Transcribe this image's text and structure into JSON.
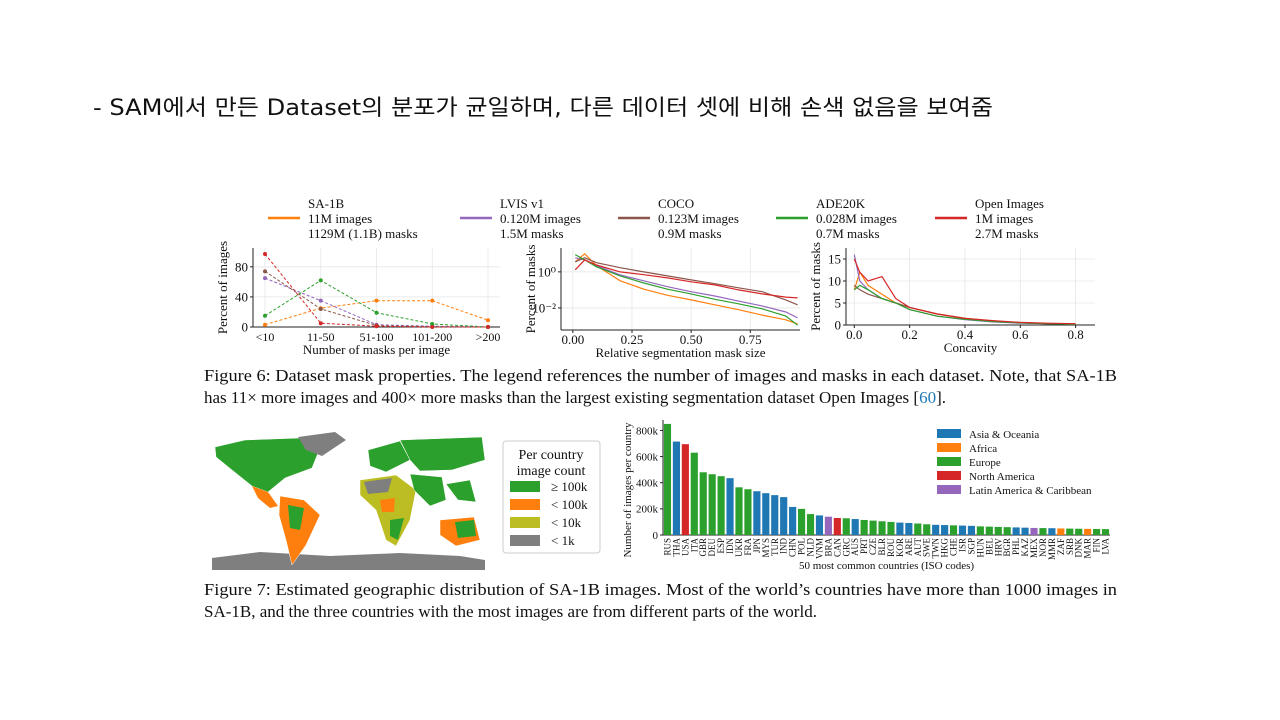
{
  "slide_title": "-  SAM에서 만든 Dataset의 분포가 균일하며, 다른 데이터 셋에 비해 손색 없음을 보여줌",
  "chart_data": [
    {
      "type": "line",
      "markers": true,
      "dashed": true,
      "grid": true,
      "categories": [
        "<10",
        "11-50",
        "51-100",
        "101-200",
        ">200"
      ],
      "xlabel": "Number of masks per image",
      "ylabel": "Percent of images",
      "ylim": [
        0,
        105
      ],
      "yticks": [
        0,
        40,
        80
      ],
      "series": [
        {
          "name": "SA-1B",
          "images": "11M images",
          "masks": "1129M (1.1B) masks",
          "color": "#ff7f0e",
          "values": [
            3,
            25,
            35,
            35,
            9
          ]
        },
        {
          "name": "LVIS v1",
          "images": "0.120M images",
          "masks": "1.5M masks",
          "color": "#9467bd",
          "values": [
            65,
            35,
            3,
            1,
            0
          ]
        },
        {
          "name": "COCO",
          "images": "0.123M images",
          "masks": "0.9M masks",
          "color": "#8c564b",
          "values": [
            74,
            24,
            2,
            0.5,
            0
          ]
        },
        {
          "name": "ADE20K",
          "images": "0.028M images",
          "masks": "0.7M masks",
          "color": "#2ca02c",
          "values": [
            15,
            62,
            19,
            4,
            0
          ]
        },
        {
          "name": "Open Images",
          "images": "1M images",
          "masks": "2.7M masks",
          "color": "#d62728",
          "values": [
            97,
            5,
            1,
            0,
            0
          ]
        }
      ]
    },
    {
      "type": "line",
      "grid": true,
      "log_y": true,
      "x": [
        0.01,
        0.05,
        0.1,
        0.2,
        0.3,
        0.4,
        0.5,
        0.6,
        0.7,
        0.8,
        0.9,
        0.95
      ],
      "xlabel": "Relative segmentation mask size",
      "ylabel": "Percent of masks",
      "xlim": [
        -0.05,
        0.96
      ],
      "xticks": [
        {
          "value": 0,
          "label": "0.00"
        },
        {
          "value": 0.25,
          "label": "0.25"
        },
        {
          "value": 0.5,
          "label": "0.50"
        },
        {
          "value": 0.75,
          "label": "0.75"
        }
      ],
      "ylim": [
        0.0006,
        21
      ],
      "yticks": [
        {
          "value": 1,
          "label": "10⁰"
        },
        {
          "value": 0.01,
          "label": "10⁻²"
        }
      ],
      "series": [
        {
          "color": "#ff7f0e",
          "values": [
            3.6,
            10,
            2.2,
            0.32,
            0.11,
            0.05,
            0.028,
            0.015,
            0.008,
            0.004,
            0.0022,
            0.0013
          ]
        },
        {
          "color": "#9467bd",
          "values": [
            6,
            4.6,
            2.2,
            0.68,
            0.32,
            0.15,
            0.08,
            0.046,
            0.024,
            0.013,
            0.006,
            0.0028
          ]
        },
        {
          "color": "#8c564b",
          "values": [
            3.6,
            6,
            3.2,
            1.7,
            1,
            0.6,
            0.36,
            0.22,
            0.13,
            0.08,
            0.028,
            0.015
          ]
        },
        {
          "color": "#2ca02c",
          "values": [
            9,
            4.6,
            1.9,
            0.6,
            0.24,
            0.11,
            0.06,
            0.03,
            0.017,
            0.009,
            0.0036,
            0.0011
          ]
        },
        {
          "color": "#d62728",
          "values": [
            1.3,
            4.6,
            2.4,
            1,
            0.7,
            0.46,
            0.28,
            0.19,
            0.1,
            0.06,
            0.04,
            0.036
          ]
        }
      ]
    },
    {
      "type": "line",
      "grid": true,
      "x": [
        0,
        0.02,
        0.05,
        0.1,
        0.15,
        0.2,
        0.3,
        0.4,
        0.5,
        0.6,
        0.7,
        0.8
      ],
      "xlabel": "Concavity",
      "ylabel": "Percent of masks",
      "xlim": [
        -0.03,
        0.87
      ],
      "xticks": [
        {
          "value": 0,
          "label": "0.0"
        },
        {
          "value": 0.2,
          "label": "0.2"
        },
        {
          "value": 0.4,
          "label": "0.4"
        },
        {
          "value": 0.6,
          "label": "0.6"
        },
        {
          "value": 0.8,
          "label": "0.8"
        }
      ],
      "ylim": [
        0,
        17.5
      ],
      "yticks": [
        0,
        5,
        10,
        15
      ],
      "series": [
        {
          "color": "#ff7f0e",
          "values": [
            8,
            12,
            9,
            7,
            5,
            4,
            2.5,
            1.5,
            0.8,
            0.5,
            0.3,
            0.2
          ]
        },
        {
          "color": "#9467bd",
          "values": [
            16,
            10,
            8,
            6,
            5,
            3.5,
            2,
            1.2,
            0.7,
            0.4,
            0.3,
            0.2
          ]
        },
        {
          "color": "#8c564b",
          "values": [
            9,
            8,
            7,
            6,
            5,
            4,
            2.5,
            1.5,
            0.9,
            0.5,
            0.3,
            0.2
          ]
        },
        {
          "color": "#2ca02c",
          "values": [
            8,
            9,
            8,
            6,
            5,
            3.5,
            2,
            1.3,
            0.8,
            0.5,
            0.3,
            0.2
          ]
        },
        {
          "color": "#d62728",
          "values": [
            15,
            12,
            10,
            11,
            6,
            4,
            2.5,
            1.5,
            1,
            0.6,
            0.4,
            0.3
          ]
        }
      ]
    },
    {
      "type": "bar",
      "categories": [
        "RUS",
        "THA",
        "USA",
        "ITA",
        "GBR",
        "DEU",
        "ESP",
        "IDN",
        "UKR",
        "FRA",
        "JPN",
        "MYS",
        "TUR",
        "IND",
        "CHN",
        "POL",
        "NLD",
        "VNM",
        "BRA",
        "CAN",
        "GRC",
        "AUS",
        "PRT",
        "CZE",
        "BLR",
        "ROU",
        "KOR",
        "ARE",
        "AUT",
        "SWE",
        "TWN",
        "HKG",
        "CHE",
        "ISR",
        "SGP",
        "HUN",
        "BEL",
        "HRV",
        "BGR",
        "PHL",
        "KAZ",
        "MEX",
        "NOR",
        "MMR",
        "ZAF",
        "SRB",
        "DNK",
        "MAR",
        "FIN",
        "LVA"
      ],
      "values": [
        850000,
        715000,
        695000,
        630000,
        480000,
        465000,
        450000,
        435000,
        365000,
        350000,
        335000,
        320000,
        305000,
        290000,
        215000,
        200000,
        160000,
        150000,
        140000,
        130000,
        128000,
        122000,
        115000,
        110000,
        105000,
        100000,
        95000,
        92000,
        88000,
        82000,
        78000,
        76000,
        74000,
        72000,
        70000,
        66000,
        64000,
        62000,
        60000,
        58000,
        56000,
        54000,
        53000,
        52000,
        50000,
        49000,
        48000,
        47000,
        46000,
        45000
      ],
      "colors": [
        "#2ca02c",
        "#1f77b4",
        "#d62728",
        "#2ca02c",
        "#2ca02c",
        "#2ca02c",
        "#2ca02c",
        "#1f77b4",
        "#2ca02c",
        "#2ca02c",
        "#1f77b4",
        "#1f77b4",
        "#1f77b4",
        "#1f77b4",
        "#1f77b4",
        "#2ca02c",
        "#2ca02c",
        "#1f77b4",
        "#9467bd",
        "#d62728",
        "#2ca02c",
        "#1f77b4",
        "#2ca02c",
        "#2ca02c",
        "#2ca02c",
        "#2ca02c",
        "#1f77b4",
        "#1f77b4",
        "#2ca02c",
        "#2ca02c",
        "#1f77b4",
        "#1f77b4",
        "#2ca02c",
        "#1f77b4",
        "#1f77b4",
        "#2ca02c",
        "#2ca02c",
        "#2ca02c",
        "#2ca02c",
        "#1f77b4",
        "#1f77b4",
        "#9467bd",
        "#2ca02c",
        "#1f77b4",
        "#ff7f0e",
        "#2ca02c",
        "#2ca02c",
        "#ff7f0e",
        "#2ca02c",
        "#2ca02c"
      ],
      "xlabel": "50 most common countries (ISO codes)",
      "ylabel": "Number of images per country",
      "ylim": [
        0,
        880000
      ],
      "yticks": [
        0,
        {
          "value": 200000,
          "label": "200k"
        },
        {
          "value": 400000,
          "label": "400k"
        },
        {
          "value": 600000,
          "label": "600k"
        },
        {
          "value": 800000,
          "label": "800k"
        }
      ],
      "legend_position": "upper right",
      "legend": [
        {
          "name": "Asia & Oceania",
          "color": "#1f77b4"
        },
        {
          "name": "Africa",
          "color": "#ff7f0e"
        },
        {
          "name": "Europe",
          "color": "#2ca02c"
        },
        {
          "name": "North America",
          "color": "#d62728"
        },
        {
          "name": "Latin America & Caribbean",
          "color": "#9467bd"
        }
      ]
    }
  ],
  "figure6_caption": {
    "lines": [
      "Figure 6: Dataset mask properties. The legend references the number of images and masks in each dataset. Note, that SA-1B",
      "has 11× more images and 400× more masks than the largest existing segmentation dataset Open Images ["
    ],
    "ref": "60",
    "end": "]."
  },
  "map_legend": {
    "title": [
      "Per country",
      "image count"
    ],
    "entries": [
      {
        "label": "≥ 100k",
        "color": "#2ca02c"
      },
      {
        "label": "< 100k",
        "color": "#ff7f0e"
      },
      {
        "label": "< 10k",
        "color": "#bcbd22"
      },
      {
        "label": "< 1k",
        "color": "#7f7f7f"
      }
    ]
  },
  "figure7_caption": {
    "lines": [
      "Figure 7: Estimated geographic distribution of SA-1B images. Most of the world’s countries have more than 1000 images in",
      "SA-1B, and the three countries with the most images are from different parts of the world."
    ]
  }
}
